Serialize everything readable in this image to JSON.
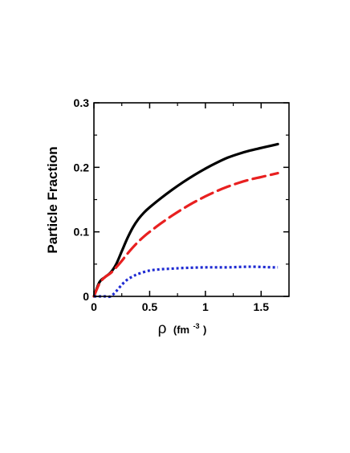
{
  "chart_data": {
    "type": "line",
    "title": "",
    "xlabel": "ρ (fm⁻³)",
    "xlabel_parts": {
      "symbol": "ρ",
      "unit_open": "(fm",
      "unit_exp": "-3",
      "unit_close": ")"
    },
    "ylabel": "Particle Fraction",
    "xlim": [
      0,
      1.75
    ],
    "ylim": [
      0,
      0.3
    ],
    "x_ticks": [
      {
        "value": 0,
        "label": "0"
      },
      {
        "value": 0.5,
        "label": "0.5"
      },
      {
        "value": 1,
        "label": "1"
      },
      {
        "value": 1.5,
        "label": "1.5"
      }
    ],
    "y_ticks": [
      {
        "value": 0,
        "label": "0"
      },
      {
        "value": 0.1,
        "label": "0.1"
      },
      {
        "value": 0.2,
        "label": "0.2"
      },
      {
        "value": 0.3,
        "label": "0.3"
      }
    ],
    "grid": false,
    "legend": "none",
    "series": [
      {
        "style": "solid",
        "color": "#000000",
        "x": [
          0,
          0.05,
          0.1,
          0.15,
          0.2,
          0.25,
          0.3,
          0.35,
          0.4,
          0.45,
          0.5,
          0.6,
          0.7,
          0.8,
          0.9,
          1.0,
          1.1,
          1.2,
          1.3,
          1.4,
          1.5,
          1.6,
          1.65
        ],
        "y": [
          0,
          0.022,
          0.03,
          0.037,
          0.05,
          0.07,
          0.09,
          0.107,
          0.12,
          0.13,
          0.138,
          0.152,
          0.165,
          0.177,
          0.188,
          0.198,
          0.207,
          0.215,
          0.221,
          0.226,
          0.23,
          0.234,
          0.236
        ]
      },
      {
        "style": "dashed",
        "color": "#e82020",
        "x": [
          0,
          0.05,
          0.1,
          0.15,
          0.2,
          0.25,
          0.3,
          0.35,
          0.4,
          0.45,
          0.5,
          0.6,
          0.7,
          0.8,
          0.9,
          1.0,
          1.1,
          1.2,
          1.3,
          1.4,
          1.5,
          1.6,
          1.65
        ],
        "y": [
          0,
          0.02,
          0.03,
          0.036,
          0.045,
          0.055,
          0.066,
          0.076,
          0.085,
          0.093,
          0.1,
          0.113,
          0.125,
          0.136,
          0.146,
          0.155,
          0.163,
          0.17,
          0.176,
          0.181,
          0.185,
          0.189,
          0.191
        ]
      },
      {
        "style": "dotted",
        "color": "#1e2ad2",
        "x": [
          0,
          0.05,
          0.1,
          0.15,
          0.2,
          0.25,
          0.3,
          0.35,
          0.4,
          0.5,
          0.6,
          0.7,
          0.8,
          1.0,
          1.2,
          1.4,
          1.6,
          1.65
        ],
        "y": [
          0,
          0,
          0,
          0,
          0.008,
          0.018,
          0.026,
          0.031,
          0.035,
          0.04,
          0.042,
          0.043,
          0.044,
          0.045,
          0.045,
          0.046,
          0.045,
          0.045
        ]
      }
    ]
  }
}
